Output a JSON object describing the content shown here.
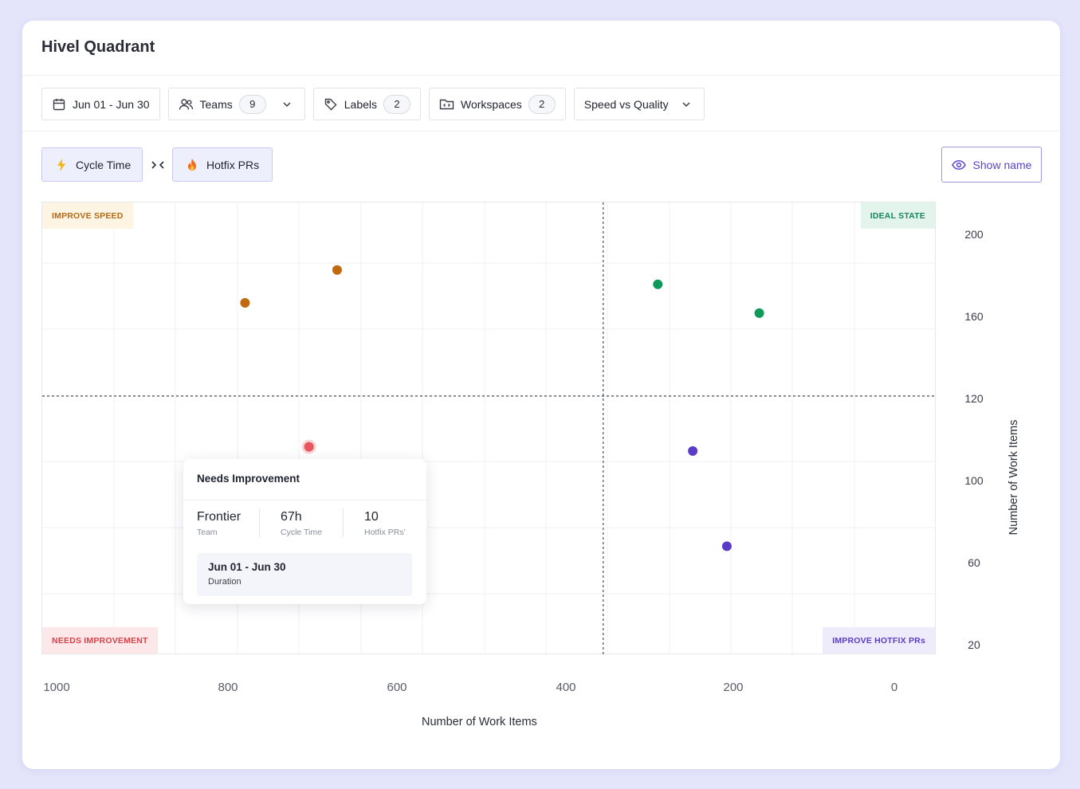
{
  "card": {
    "title": "Hivel Quadrant"
  },
  "filters": {
    "date_range": "Jun 01 - Jun 30",
    "teams": {
      "label": "Teams",
      "count": "9"
    },
    "labels": {
      "label": "Labels",
      "count": "2"
    },
    "workspaces": {
      "label": "Workspaces",
      "count": "2"
    },
    "view": {
      "selected": "Speed vs Quality"
    }
  },
  "metrics": {
    "x_metric": {
      "label": "Cycle Time",
      "icon": "lightning-icon"
    },
    "y_metric": {
      "label": "Hotfix PRs",
      "icon": "fire-icon"
    },
    "swap_icon": "swap-arrows-icon"
  },
  "show_name": {
    "label": "Show name",
    "icon": "eye-icon"
  },
  "quadrants": {
    "top_left": {
      "label": "IMPROVE SPEED",
      "color": "#b46a12",
      "bg": "#fdf4e4"
    },
    "top_right": {
      "label": "IDEAL STATE",
      "color": "#17855a",
      "bg": "#e3f4ec"
    },
    "bottom_left": {
      "label": "NEEDS IMPROVEMENT",
      "color": "#d6434a",
      "bg": "#fde8e9"
    },
    "bottom_right": {
      "label": "IMPROVE HOTFIX PRs",
      "color": "#5a3dc4",
      "bg": "#eeebfb"
    }
  },
  "chart_data": {
    "type": "scatter",
    "xlabel": "Number of Work Items",
    "ylabel": "Number of Work Items",
    "x_ticks": [
      "1000",
      "800",
      "600",
      "400",
      "200",
      "0"
    ],
    "y_ticks": [
      "200",
      "160",
      "120",
      "100",
      "60",
      "20"
    ],
    "xlim": [
      1000,
      0
    ],
    "x_reversed": true,
    "y_axis_position": "right",
    "y_note": "tick labels are unevenly spaced (200, 160, 120, 100, 60, 20); y values below are read on the tick-label scale",
    "grid": true,
    "divider": {
      "x": 360,
      "y": 120
    },
    "points": [
      {
        "x": 780,
        "y": 167,
        "color": "#c2690f",
        "quadrant": "top_left"
      },
      {
        "x": 672,
        "y": 183,
        "color": "#c2690f",
        "quadrant": "top_left"
      },
      {
        "x": 296,
        "y": 176,
        "color": "#0e9a58",
        "quadrant": "top_right"
      },
      {
        "x": 177,
        "y": 162,
        "color": "#0e9a58",
        "quadrant": "top_right"
      },
      {
        "x": 705,
        "y": 108,
        "color": "#e8575f",
        "quadrant": "bottom_left",
        "highlighted": true
      },
      {
        "x": 255,
        "y": 107,
        "color": "#5b3cc8",
        "quadrant": "bottom_right"
      },
      {
        "x": 215,
        "y": 68,
        "color": "#5b3cc8",
        "quadrant": "bottom_right"
      }
    ]
  },
  "tooltip": {
    "title": "Needs Improvement",
    "team_value": "Frontier",
    "team_label": "Team",
    "cycle_value": "67h",
    "cycle_label": "Cycle Time",
    "hotfix_value": "10",
    "hotfix_label": "Hotfix PRs'",
    "duration_value": "Jun 01 - Jun 30",
    "duration_label": "Duration"
  }
}
